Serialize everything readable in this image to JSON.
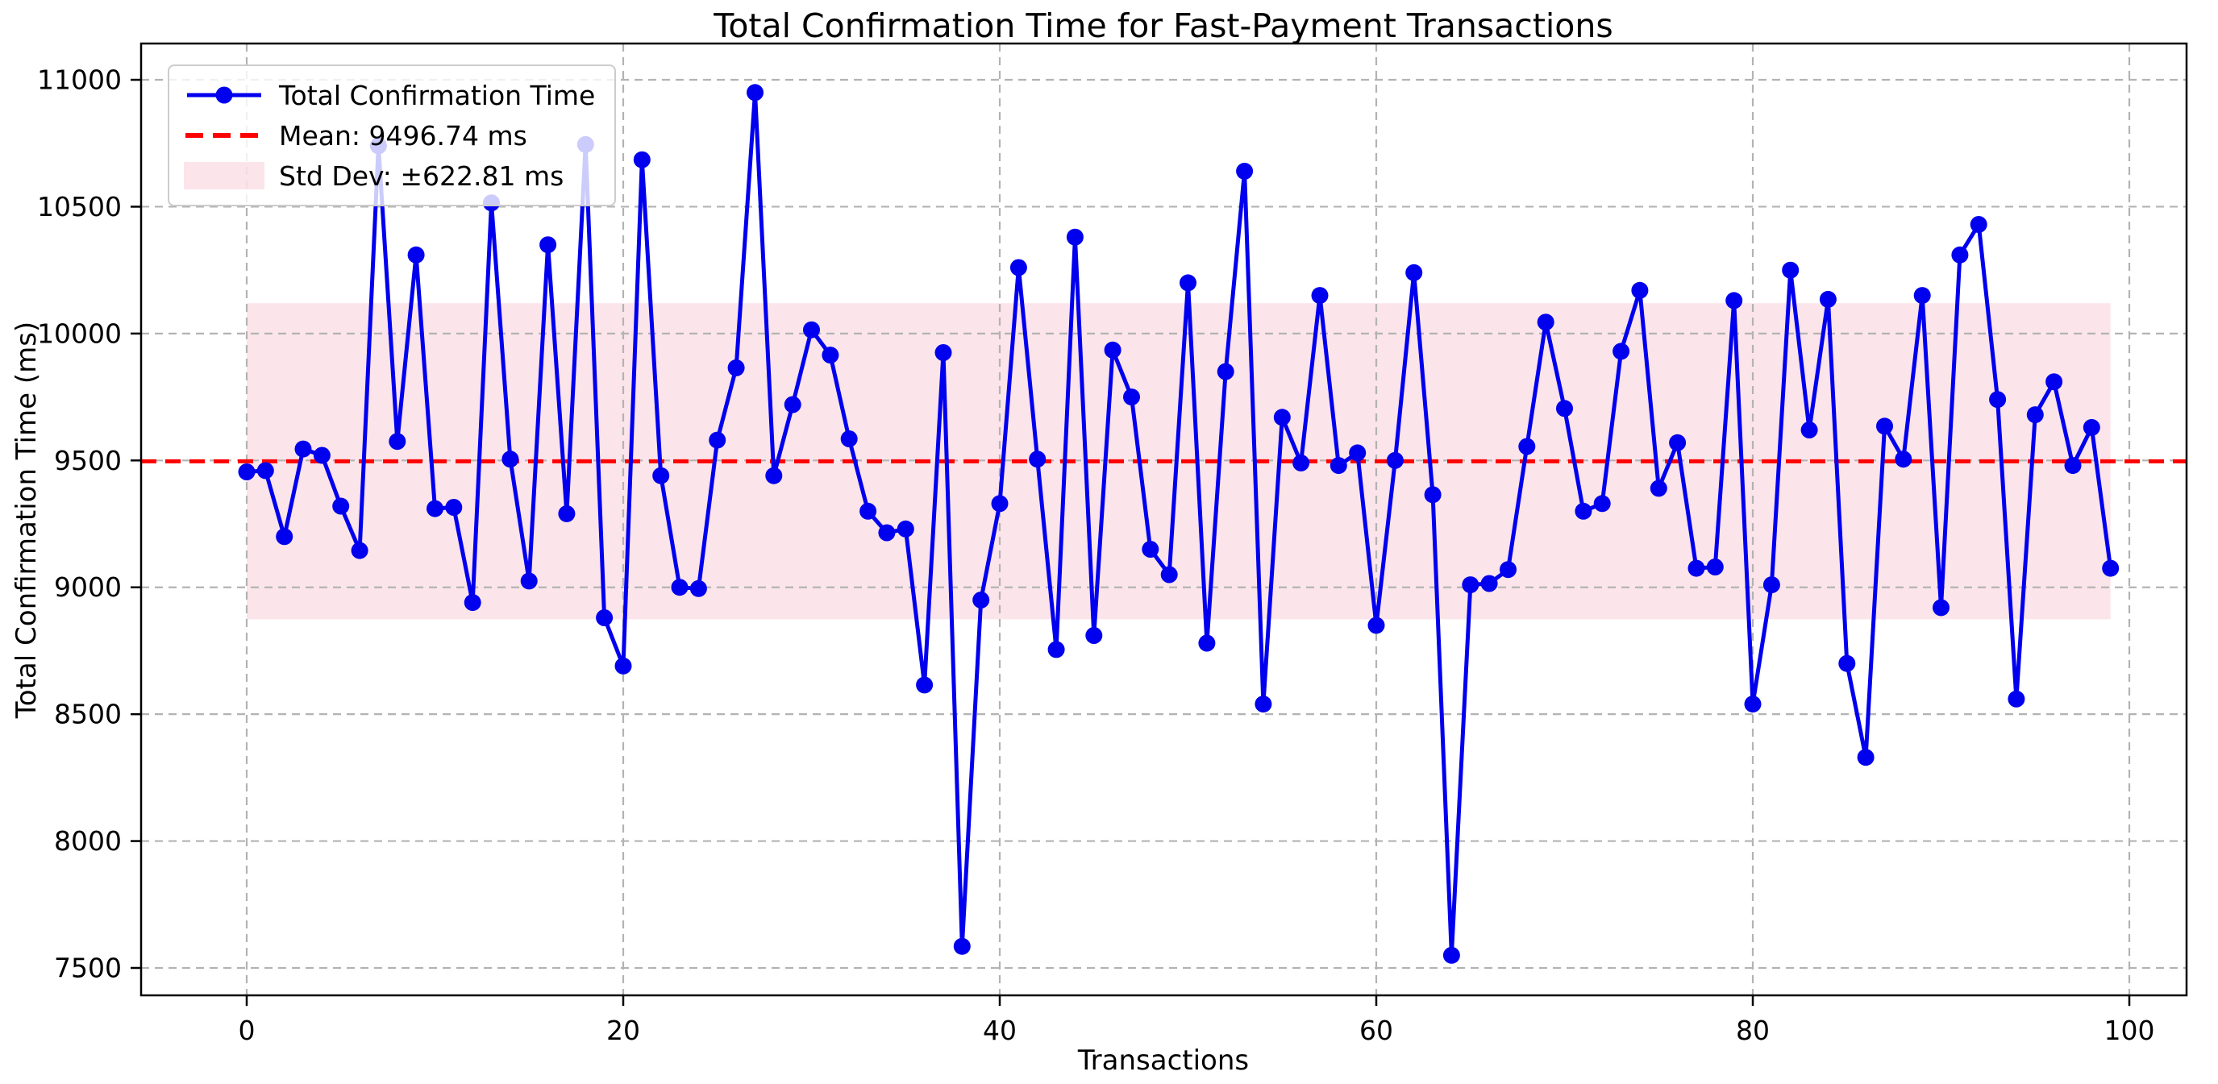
{
  "chart_data": {
    "type": "line",
    "title": "Total Confirmation Time for Fast-Payment Transactions",
    "xlabel": "Transactions",
    "ylabel": "Total Confirmation Time (ms)",
    "series_name": "Total Confirmation Time",
    "x_is_index": true,
    "values": [
      9455,
      9460,
      9200,
      9545,
      9520,
      9320,
      9145,
      10740,
      9575,
      10310,
      9310,
      9315,
      8940,
      10515,
      9505,
      9025,
      10350,
      9290,
      10745,
      8880,
      8690,
      10685,
      9440,
      9000,
      8995,
      9580,
      9865,
      10950,
      9440,
      9720,
      10015,
      9915,
      9585,
      9300,
      9215,
      9230,
      8615,
      9925,
      7585,
      8950,
      9330,
      10260,
      9505,
      8755,
      10380,
      8810,
      9935,
      9750,
      9150,
      9050,
      10200,
      8780,
      9850,
      10640,
      8540,
      9670,
      9490,
      10150,
      9480,
      9530,
      8850,
      9500,
      10240,
      9365,
      7550,
      9010,
      9015,
      9070,
      9555,
      10045,
      9705,
      9300,
      9330,
      9930,
      10170,
      9390,
      9570,
      9075,
      9080,
      10130,
      8540,
      9010,
      10250,
      9620,
      10135,
      8700,
      8330,
      9635,
      9505,
      10150,
      8920,
      10310,
      10430,
      9740,
      8560,
      9680,
      9810,
      9480,
      9630,
      9075
    ],
    "mean": 9496.74,
    "std": 622.81,
    "band_x_range": [
      0,
      99
    ],
    "xticks": [
      0,
      20,
      40,
      60,
      80,
      100
    ],
    "yticks": [
      7500,
      8000,
      8500,
      9000,
      9500,
      10000,
      10500,
      11000
    ],
    "xlim": [
      -5.61,
      103.04
    ],
    "ylim": [
      7392,
      11143
    ],
    "grid": true,
    "legend_position": "upper-left",
    "legend": [
      {
        "label": "Total Confirmation Time",
        "type": "line-marker"
      },
      {
        "label": "Mean: 9496.74 ms",
        "type": "dashed-line"
      },
      {
        "label": "Std Dev: ±622.81 ms",
        "type": "patch"
      }
    ],
    "colors": {
      "line": "#0000ee",
      "marker": "#0000ee",
      "mean_line": "#ff0000",
      "band": "rgba(247,198,212,0.48)",
      "grid": "#b3b3b3",
      "spine": "#000000",
      "text": "#000000"
    }
  }
}
